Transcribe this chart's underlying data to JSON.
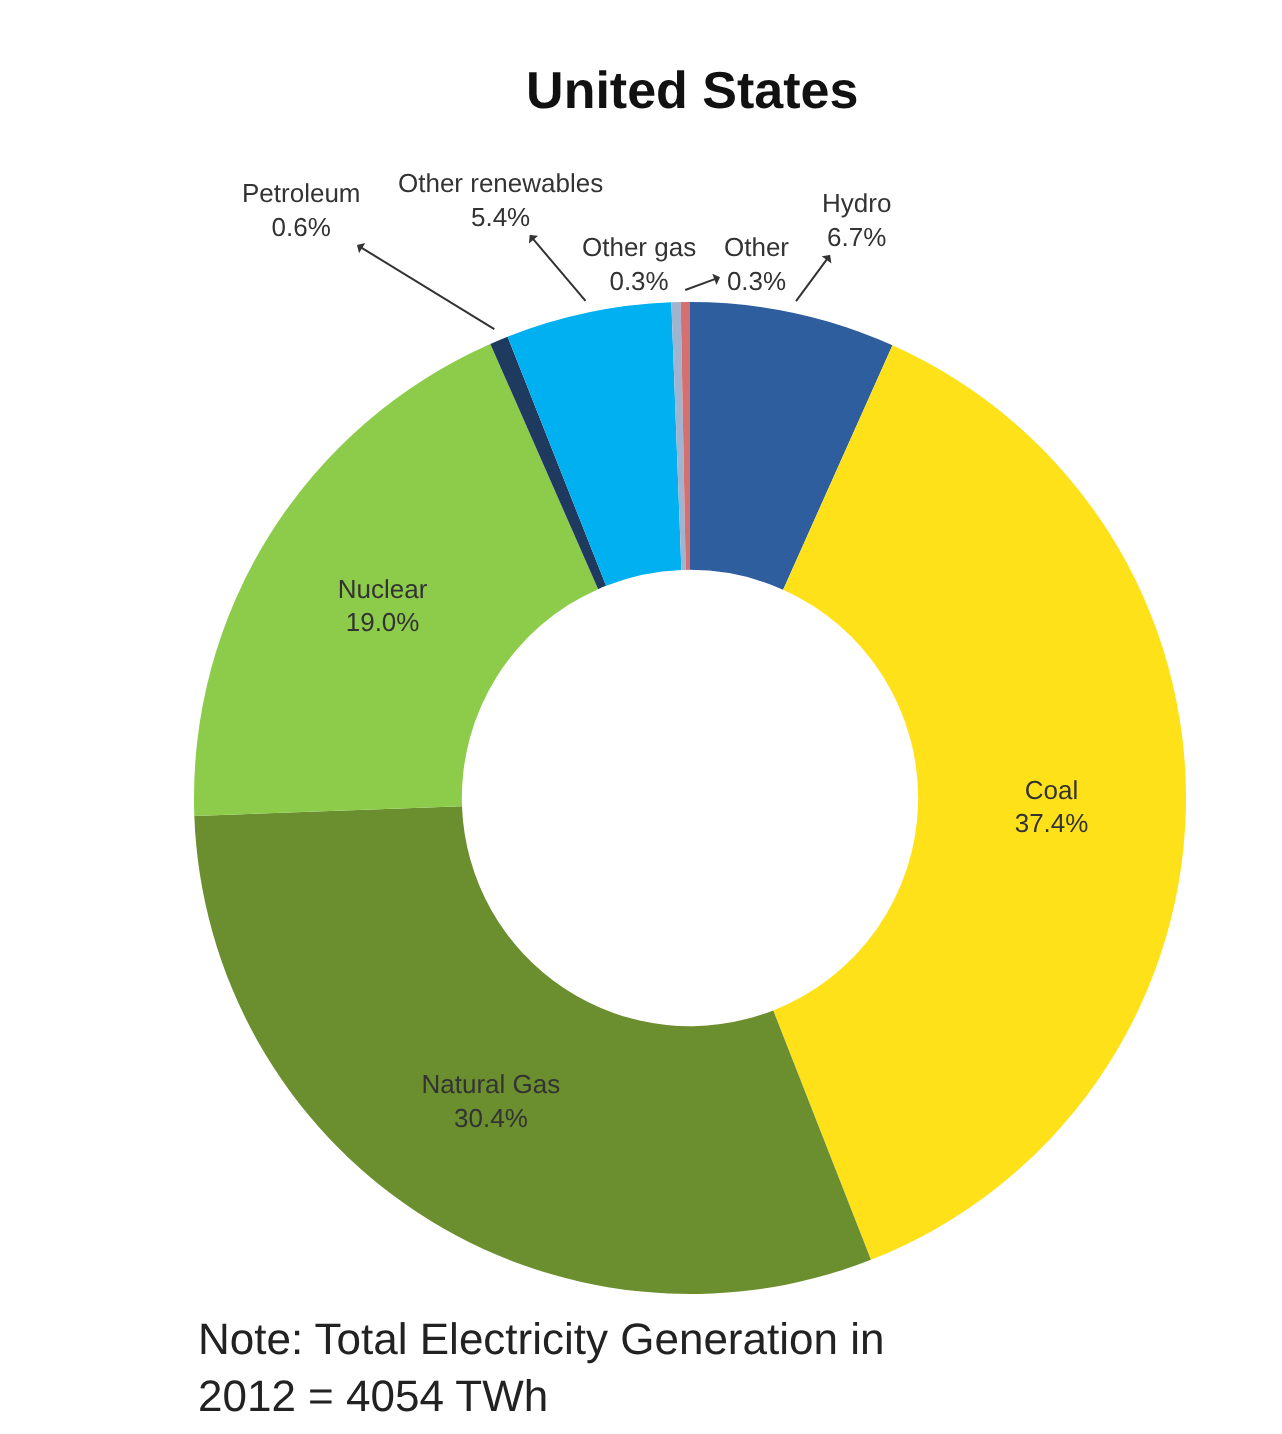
{
  "chart_data": {
    "type": "donut",
    "title": "United States",
    "categories": [
      "Hydro",
      "Coal",
      "Natural Gas",
      "Nuclear",
      "Petroleum",
      "Other renewables",
      "Other gas",
      "Other"
    ],
    "values": [
      6.7,
      37.4,
      30.4,
      19.0,
      0.6,
      5.4,
      0.3,
      0.3
    ],
    "value_labels": [
      "6.7%",
      "37.4%",
      "30.4%",
      "19.0%",
      "0.6%",
      "5.4%",
      "0.3%",
      "0.3%"
    ],
    "colors": [
      "#2e5e9e",
      "#ffe11a",
      "#6b8e2e",
      "#8ccc4a",
      "#1f3a5f",
      "#00b0f0",
      "#a0b4d0",
      "#d47070"
    ],
    "legend": false,
    "annotations": [
      "Note: Total Electricity Generation in 2012 = 4054 TWh"
    ]
  }
}
